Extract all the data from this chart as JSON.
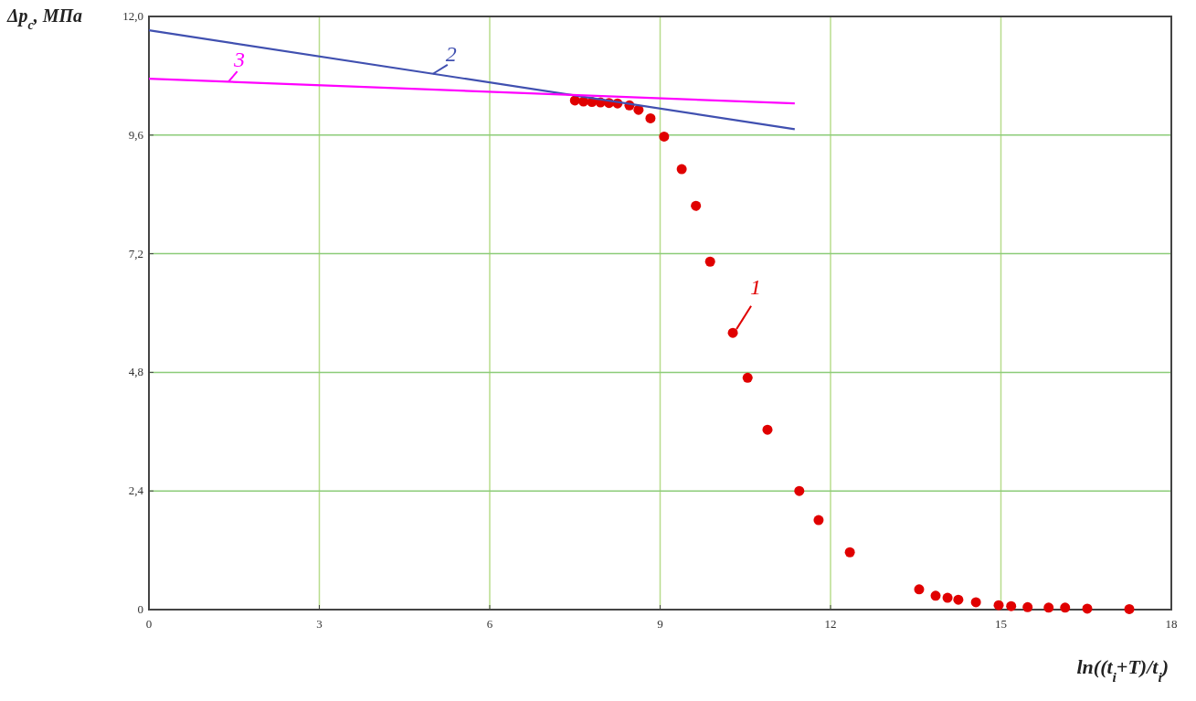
{
  "chart_data": {
    "type": "scatter",
    "xlabel": "ln((t$_{i}$+T)/t$_{i}$)",
    "ylabel": "Δp$_{c}$, МПа",
    "xlim": [
      0,
      18
    ],
    "xticks": [
      0,
      3,
      6,
      9,
      12,
      15,
      18
    ],
    "ylim": [
      0,
      12
    ],
    "yticks": [
      {
        "value": 0,
        "label": "0"
      },
      {
        "value": 2.4,
        "label": "2,4"
      },
      {
        "value": 4.8,
        "label": "4,8"
      },
      {
        "value": 7.2,
        "label": "7,2"
      },
      {
        "value": 9.6,
        "label": "9,6"
      },
      {
        "value": 12,
        "label": "12,0"
      }
    ],
    "grid": true,
    "marker": "circle",
    "series": [
      {
        "color": "#e00000",
        "x": [
          7.5,
          7.65,
          7.8,
          7.95,
          8.1,
          8.25,
          8.46,
          8.62,
          8.83,
          9.07,
          9.38,
          9.63,
          9.88,
          10.28,
          10.54,
          10.89,
          11.45,
          11.79,
          12.34,
          13.56,
          13.85,
          14.06,
          14.25,
          14.56,
          14.96,
          15.18,
          15.47,
          15.84,
          16.13,
          16.52,
          17.26
        ],
        "values": [
          10.3,
          10.28,
          10.27,
          10.26,
          10.25,
          10.24,
          10.2,
          10.11,
          9.94,
          9.57,
          8.91,
          8.17,
          7.04,
          5.6,
          4.69,
          3.64,
          2.4,
          1.81,
          1.16,
          0.41,
          0.28,
          0.24,
          0.2,
          0.15,
          0.09,
          0.07,
          0.05,
          0.04,
          0.04,
          0.02,
          0.01
        ]
      },
      {
        "type": "line",
        "color": "#4050b0",
        "x": [
          0,
          11.37
        ],
        "values": [
          11.72,
          9.72
        ],
        "marker": "none"
      },
      {
        "type": "line",
        "color": "#ff00ff",
        "x": [
          0,
          11.37
        ],
        "values": [
          10.74,
          10.24
        ],
        "marker": "none"
      }
    ],
    "annotations": [
      {
        "text": "1",
        "x": 10.28,
        "y": 5.6
      },
      {
        "text": "2",
        "x": 5.0,
        "y": 10.84
      },
      {
        "text": "3",
        "x": 1.4,
        "y": 10.68
      }
    ]
  }
}
